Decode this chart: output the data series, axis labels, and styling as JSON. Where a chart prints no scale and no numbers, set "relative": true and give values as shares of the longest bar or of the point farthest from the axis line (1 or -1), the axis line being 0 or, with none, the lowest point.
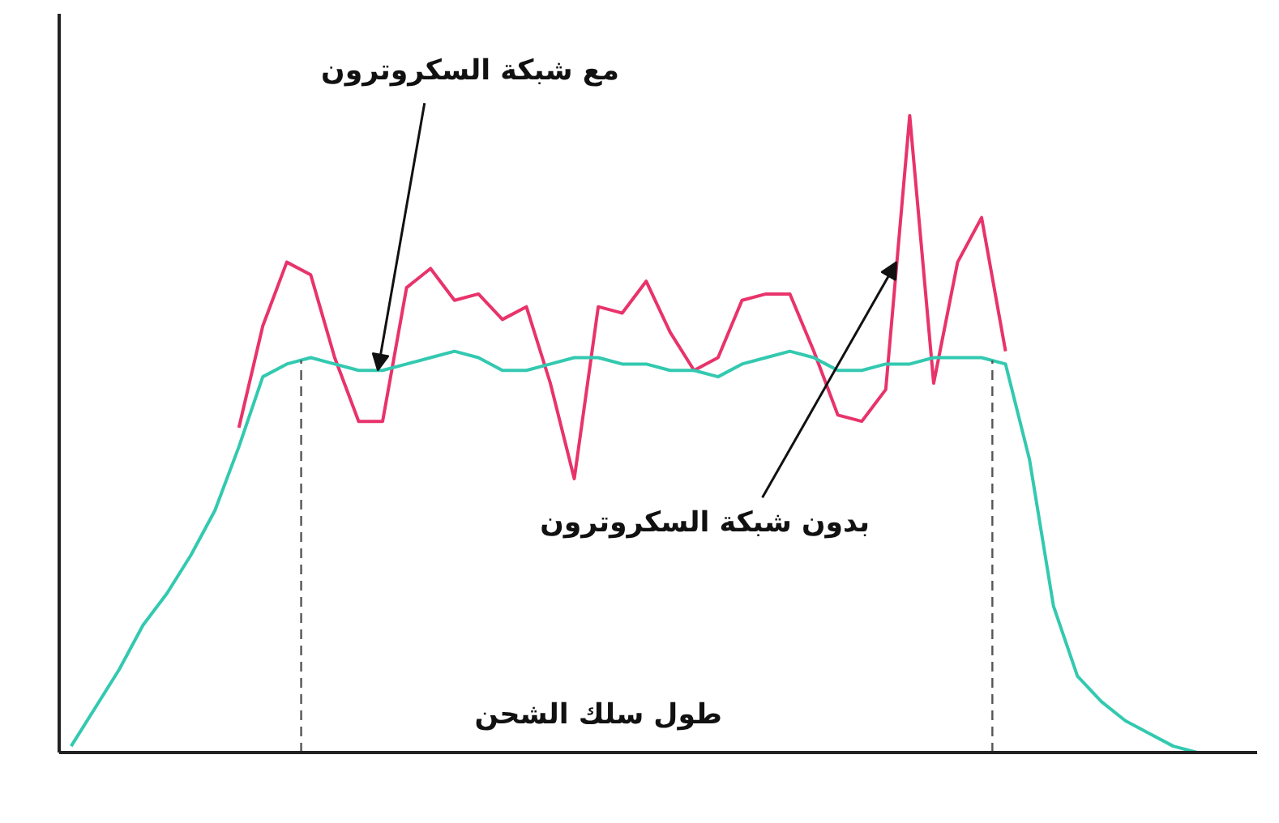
{
  "chart_data": {
    "type": "line",
    "relative": true,
    "xlabel": "طول سلك الشحن",
    "line_style": "solid",
    "categories": [
      null,
      null,
      null,
      null,
      null,
      null,
      null,
      null,
      null,
      null,
      null,
      null,
      null,
      null,
      null,
      null,
      null,
      null,
      null,
      null,
      null,
      null,
      null,
      null,
      null,
      null,
      null,
      null,
      null,
      null,
      null,
      null,
      null,
      null,
      null,
      null,
      null,
      null,
      null,
      null,
      null,
      null,
      null,
      null,
      null,
      null,
      null,
      null
    ],
    "annotations": [
      "مع شبكة السكروترون",
      "بدون شبكة السكروترون"
    ],
    "series": [
      {
        "color": "#e8336b",
        "values": [
          null,
          null,
          null,
          null,
          null,
          null,
          null,
          0.51,
          0.67,
          0.77,
          0.75,
          0.62,
          0.52,
          0.52,
          0.73,
          0.76,
          0.71,
          0.72,
          0.68,
          0.7,
          0.58,
          0.43,
          0.7,
          0.69,
          0.74,
          0.66,
          0.6,
          0.62,
          0.71,
          0.72,
          0.72,
          0.63,
          0.53,
          0.52,
          0.57,
          1,
          0.58,
          0.77,
          0.84,
          0.63,
          null,
          null,
          null,
          null,
          null,
          null,
          null,
          null
        ]
      },
      {
        "color": "#33c9b0",
        "values": [
          0.01,
          0.07,
          0.13,
          0.2,
          0.25,
          0.31,
          0.38,
          0.48,
          0.59,
          0.61,
          0.62,
          0.61,
          0.6,
          0.6,
          0.61,
          0.62,
          0.63,
          0.62,
          0.6,
          0.6,
          0.61,
          0.62,
          0.62,
          0.61,
          0.61,
          0.6,
          0.6,
          0.59,
          0.61,
          0.62,
          0.63,
          0.62,
          0.6,
          0.6,
          0.61,
          0.61,
          0.62,
          0.62,
          0.62,
          0.61,
          0.46,
          0.23,
          0.12,
          0.08,
          0.05,
          0.03,
          0.01,
          0.0
        ]
      }
    ]
  }
}
